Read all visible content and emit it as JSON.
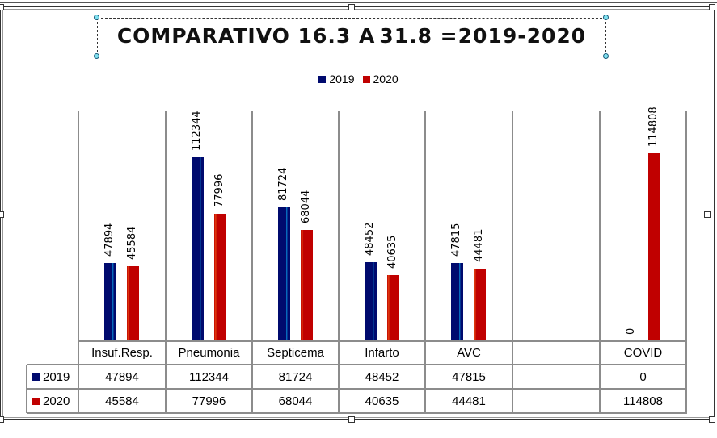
{
  "title": {
    "text_before_cursor": "COMPARATIVO 16.3 A",
    "text_after_cursor": "31.8 =2019-2020"
  },
  "legend": [
    {
      "label": "2019",
      "color": "#000a6e"
    },
    {
      "label": "2020",
      "color": "#c00000"
    }
  ],
  "table": {
    "headers": [
      "Insuf.Resp.",
      "Pneumonia",
      "Septicema",
      "Infarto",
      "AVC",
      "",
      "COVID"
    ],
    "rows": [
      {
        "label": "2019",
        "color": "#000a6e",
        "values": [
          "47894",
          "112344",
          "81724",
          "48452",
          "47815",
          "",
          "0"
        ]
      },
      {
        "label": "2020",
        "color": "#c00000",
        "values": [
          "45584",
          "77996",
          "68044",
          "40635",
          "44481",
          "",
          "114808"
        ]
      }
    ]
  },
  "chart_data": {
    "type": "bar",
    "title": "COMPARATIVO 16.3 A 31.8 =2019-2020",
    "categories": [
      "Insuf.Resp.",
      "Pneumonia",
      "Septicema",
      "Infarto",
      "AVC",
      "",
      "COVID"
    ],
    "series": [
      {
        "name": "2019",
        "color": "#000a6e",
        "values": [
          47894,
          112344,
          81724,
          48452,
          47815,
          null,
          0
        ]
      },
      {
        "name": "2020",
        "color": "#c00000",
        "values": [
          45584,
          77996,
          68044,
          40635,
          44481,
          null,
          114808
        ]
      }
    ],
    "xlabel": "",
    "ylabel": "",
    "ylim": [
      0,
      140000
    ],
    "grid": "vertical category separators",
    "legend_position": "top",
    "data_labels": "rotated vertical above bars",
    "data_table": true
  }
}
